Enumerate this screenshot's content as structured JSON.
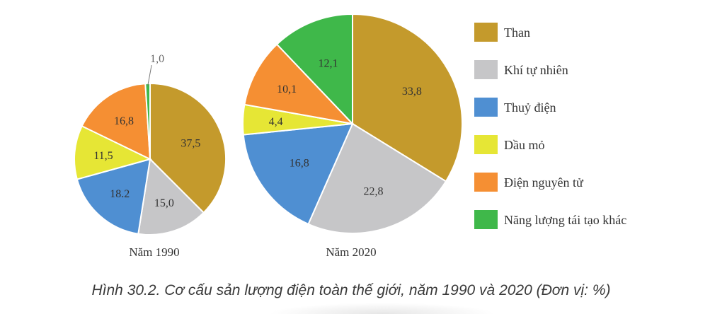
{
  "chart_data": {
    "type": "pie",
    "title": "Hình 30.2. Cơ cấu sản lượng điện toàn thế giới, năm 1990 và 2020 (Đơn vị: %)",
    "unit": "%",
    "legend_position": "right",
    "categories": [
      "Than",
      "Khí tự nhiên",
      "Thuỷ điện",
      "Dầu mỏ",
      "Điện nguyên tử",
      "Năng lượng tái tạo khác"
    ],
    "colors": [
      "#c49a2c",
      "#c6c6c8",
      "#4f8fd2",
      "#e6e635",
      "#f58f33",
      "#3fb84a"
    ],
    "pies": [
      {
        "label": "Năm 1990",
        "values": [
          37.5,
          15.0,
          18.2,
          11.5,
          16.8,
          1.0
        ],
        "value_labels": [
          "37,5",
          "15,0",
          "18.2",
          "11,5",
          "16,8",
          "1,0"
        ]
      },
      {
        "label": "Năm 2020",
        "values": [
          33.8,
          22.8,
          16.8,
          4.4,
          10.1,
          12.1
        ],
        "value_labels": [
          "33,8",
          "22,8",
          "16,8",
          "4,4",
          "10,1",
          "12,1"
        ]
      }
    ]
  }
}
